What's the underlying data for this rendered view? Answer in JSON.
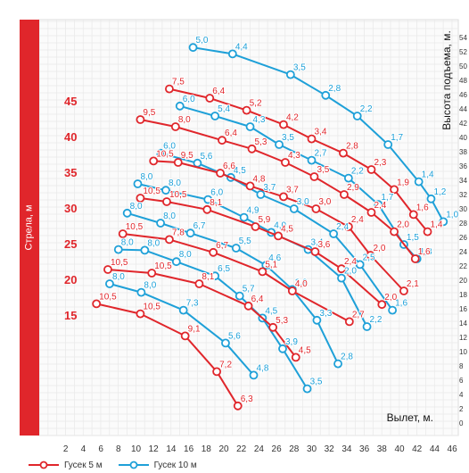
{
  "chart_data": {
    "type": "line",
    "xlabel": "Вылет, м.",
    "ylabel": "Высота подъема, м.",
    "side_label": "Стрела, м",
    "xlim": [
      0,
      46
    ],
    "ylim": [
      0,
      56
    ],
    "x_ticks": [
      "2",
      "4",
      "6",
      "8",
      "10",
      "12",
      "14",
      "16",
      "18",
      "20",
      "22",
      "24",
      "26",
      "28",
      "30",
      "32",
      "34",
      "36",
      "38",
      "40",
      "42",
      "44",
      "46"
    ],
    "y_ticks": [
      "0",
      "2",
      "4",
      "6",
      "8",
      "10",
      "12",
      "14",
      "16",
      "18",
      "20",
      "22",
      "24",
      "26",
      "28",
      "30",
      "32",
      "34",
      "36",
      "38",
      "40",
      "42",
      "44",
      "46",
      "48",
      "50",
      "52",
      "54"
    ],
    "boom_labels": [
      {
        "text": "45",
        "y": 45
      },
      {
        "text": "40",
        "y": 40
      },
      {
        "text": "35",
        "y": 35
      },
      {
        "text": "30",
        "y": 30
      },
      {
        "text": "25",
        "y": 25
      },
      {
        "text": "20",
        "y": 20
      },
      {
        "text": "15",
        "y": 15
      }
    ],
    "colors": {
      "jib5": "#e0262b",
      "jib10": "#1ea0d8",
      "boom_bar": "#e0262b",
      "grid": "#e8e8e8"
    },
    "legend": [
      {
        "name": "Гусек 5 м",
        "color": "#e0262b"
      },
      {
        "name": "Гусек 10 м",
        "color": "#1ea0d8"
      }
    ],
    "series": [
      {
        "name": "Гусек 5 м",
        "boom": "45",
        "color": "#e0262b",
        "points": [
          {
            "x": 13.8,
            "y": 46.8,
            "label": "7,5"
          },
          {
            "x": 18.4,
            "y": 45.5,
            "label": "6,4"
          },
          {
            "x": 22.6,
            "y": 43.8,
            "label": "5,2"
          },
          {
            "x": 26.8,
            "y": 41.8,
            "label": "4,2"
          },
          {
            "x": 30.0,
            "y": 39.8,
            "label": "3,4"
          },
          {
            "x": 33.6,
            "y": 37.8,
            "label": "2,8"
          },
          {
            "x": 36.8,
            "y": 35.5,
            "label": "2,3"
          },
          {
            "x": 39.4,
            "y": 32.7,
            "label": "1,9"
          },
          {
            "x": 41.6,
            "y": 29.2,
            "label": "1,6"
          },
          {
            "x": 43.2,
            "y": 26.8,
            "label": "1,4"
          }
        ]
      },
      {
        "name": "Гусек 5 м",
        "boom": "40",
        "color": "#e0262b",
        "points": [
          {
            "x": 10.5,
            "y": 42.5,
            "label": "9,5"
          },
          {
            "x": 14.5,
            "y": 41.5,
            "label": "8,0"
          },
          {
            "x": 19.8,
            "y": 39.6,
            "label": "6,4"
          },
          {
            "x": 23.2,
            "y": 38.4,
            "label": "5,3"
          },
          {
            "x": 27.0,
            "y": 36.5,
            "label": "4,3"
          },
          {
            "x": 30.3,
            "y": 34.5,
            "label": "3,5"
          },
          {
            "x": 33.7,
            "y": 32.0,
            "label": "2,9"
          },
          {
            "x": 36.8,
            "y": 29.5,
            "label": "2,4"
          },
          {
            "x": 39.4,
            "y": 26.8,
            "label": "2,0"
          },
          {
            "x": 41.8,
            "y": 23.0,
            "label": "1,6"
          }
        ]
      },
      {
        "name": "Гусек 5 м",
        "boom": "35",
        "color": "#e0262b",
        "points": [
          {
            "x": 12.0,
            "y": 36.7,
            "label": "10,5"
          },
          {
            "x": 14.8,
            "y": 36.5,
            "label": "9,5"
          },
          {
            "x": 19.6,
            "y": 35.0,
            "label": "6,6"
          },
          {
            "x": 23.0,
            "y": 33.2,
            "label": "4,8"
          },
          {
            "x": 26.8,
            "y": 31.7,
            "label": "3,7"
          },
          {
            "x": 30.5,
            "y": 30.0,
            "label": "3,0"
          },
          {
            "x": 34.2,
            "y": 27.5,
            "label": "2,4"
          },
          {
            "x": 36.7,
            "y": 23.5,
            "label": "2,0"
          },
          {
            "x": 40.5,
            "y": 18.5,
            "label": "2,1"
          }
        ]
      },
      {
        "name": "Гусек 5 м",
        "boom": "30",
        "color": "#e0262b",
        "points": [
          {
            "x": 10.5,
            "y": 31.5,
            "label": "10,5"
          },
          {
            "x": 13.5,
            "y": 31.0,
            "label": "10,5"
          },
          {
            "x": 18.1,
            "y": 29.9,
            "label": "8,1"
          },
          {
            "x": 23.6,
            "y": 27.5,
            "label": "5,9"
          },
          {
            "x": 26.2,
            "y": 26.2,
            "label": "4,5"
          },
          {
            "x": 30.4,
            "y": 24.0,
            "label": "3,6"
          },
          {
            "x": 33.4,
            "y": 21.6,
            "label": "2,4"
          },
          {
            "x": 38.0,
            "y": 16.6,
            "label": "2,0"
          }
        ]
      },
      {
        "name": "Гусек 5 м",
        "boom": "25",
        "color": "#e0262b",
        "points": [
          {
            "x": 8.5,
            "y": 26.5,
            "label": "10,5"
          },
          {
            "x": 13.8,
            "y": 25.7,
            "label": "7,8"
          },
          {
            "x": 18.8,
            "y": 23.9,
            "label": "6,7"
          },
          {
            "x": 24.4,
            "y": 21.2,
            "label": "5,1"
          },
          {
            "x": 27.8,
            "y": 18.5,
            "label": "4,0"
          },
          {
            "x": 34.3,
            "y": 14.2,
            "label": "2,7"
          }
        ]
      },
      {
        "name": "Гусек 5 м",
        "boom": "20",
        "color": "#e0262b",
        "points": [
          {
            "x": 6.8,
            "y": 21.5,
            "label": "10,5"
          },
          {
            "x": 11.8,
            "y": 21.0,
            "label": "10,5"
          },
          {
            "x": 17.2,
            "y": 19.5,
            "label": "8,1"
          },
          {
            "x": 22.8,
            "y": 16.4,
            "label": "6,4"
          },
          {
            "x": 25.6,
            "y": 13.4,
            "label": "5,3"
          },
          {
            "x": 28.2,
            "y": 9.2,
            "label": "4,5"
          }
        ]
      },
      {
        "name": "Гусек 5 м",
        "boom": "15",
        "color": "#e0262b",
        "points": [
          {
            "x": 5.5,
            "y": 16.7,
            "label": "10,5"
          },
          {
            "x": 10.5,
            "y": 15.3,
            "label": "10,5"
          },
          {
            "x": 15.6,
            "y": 12.2,
            "label": "9,1"
          },
          {
            "x": 19.2,
            "y": 7.2,
            "label": "7,2"
          },
          {
            "x": 21.6,
            "y": 2.4,
            "label": "6,3"
          }
        ]
      },
      {
        "name": "Гусек 10 м",
        "boom": "45",
        "color": "#1ea0d8",
        "points": [
          {
            "x": 16.5,
            "y": 52.6,
            "label": "5,0"
          },
          {
            "x": 21.0,
            "y": 51.7,
            "label": "4,4"
          },
          {
            "x": 27.6,
            "y": 48.8,
            "label": "3,5"
          },
          {
            "x": 31.6,
            "y": 45.9,
            "label": "2,8"
          },
          {
            "x": 35.2,
            "y": 43.0,
            "label": "2,2"
          },
          {
            "x": 38.7,
            "y": 39.0,
            "label": "1,7"
          },
          {
            "x": 42.2,
            "y": 33.8,
            "label": "1,4"
          },
          {
            "x": 43.6,
            "y": 31.4,
            "label": "1,2"
          },
          {
            "x": 45.0,
            "y": 28.2,
            "label": "1,0"
          }
        ]
      },
      {
        "name": "Гусек 10 м",
        "boom": "40",
        "color": "#1ea0d8",
        "points": [
          {
            "x": 15.0,
            "y": 44.4,
            "label": "6,0"
          },
          {
            "x": 19.0,
            "y": 43.0,
            "label": "5,4"
          },
          {
            "x": 23.0,
            "y": 41.5,
            "label": "4,3"
          },
          {
            "x": 26.3,
            "y": 39.0,
            "label": "3,5"
          },
          {
            "x": 30.0,
            "y": 36.8,
            "label": "2,7"
          },
          {
            "x": 34.2,
            "y": 34.3,
            "label": "2,2"
          },
          {
            "x": 37.6,
            "y": 30.6,
            "label": "1,7"
          },
          {
            "x": 40.5,
            "y": 25.0,
            "label": "1,5"
          },
          {
            "x": 42.0,
            "y": 23.0,
            "label": "1,3"
          }
        ]
      },
      {
        "name": "Гусек 10 м",
        "boom": "35",
        "color": "#1ea0d8",
        "points": [
          {
            "x": 12.8,
            "y": 37.8,
            "label": "6,0"
          },
          {
            "x": 17.0,
            "y": 36.4,
            "label": "5,6"
          },
          {
            "x": 20.8,
            "y": 34.4,
            "label": "4,5"
          },
          {
            "x": 24.2,
            "y": 32.0,
            "label": "3,7"
          },
          {
            "x": 28.0,
            "y": 30.0,
            "label": "3,0"
          },
          {
            "x": 32.5,
            "y": 26.5,
            "label": "2,4"
          },
          {
            "x": 35.5,
            "y": 22.2,
            "label": "2,5"
          },
          {
            "x": 39.2,
            "y": 15.8,
            "label": "1,6"
          }
        ]
      },
      {
        "name": "Гусек 10 м",
        "boom": "30",
        "color": "#1ea0d8",
        "points": [
          {
            "x": 10.2,
            "y": 33.5,
            "label": "8,0"
          },
          {
            "x": 13.4,
            "y": 32.6,
            "label": "8,0"
          },
          {
            "x": 18.2,
            "y": 31.3,
            "label": "6,0"
          },
          {
            "x": 22.3,
            "y": 28.8,
            "label": "4,9"
          },
          {
            "x": 25.4,
            "y": 26.7,
            "label": "4,0"
          },
          {
            "x": 29.6,
            "y": 24.3,
            "label": "3,4"
          },
          {
            "x": 33.4,
            "y": 20.3,
            "label": "2,0"
          },
          {
            "x": 36.3,
            "y": 13.5,
            "label": "2,2"
          }
        ]
      },
      {
        "name": "Гусек 10 м",
        "boom": "25",
        "color": "#1ea0d8",
        "points": [
          {
            "x": 9.0,
            "y": 29.4,
            "label": "8,0"
          },
          {
            "x": 12.8,
            "y": 28.0,
            "label": "8,0"
          },
          {
            "x": 16.2,
            "y": 26.6,
            "label": "6,7"
          },
          {
            "x": 21.4,
            "y": 24.5,
            "label": "5,5"
          },
          {
            "x": 24.8,
            "y": 22.1,
            "label": "4,6"
          },
          {
            "x": 27.8,
            "y": 18.7,
            "label": "3,9"
          },
          {
            "x": 30.6,
            "y": 14.4,
            "label": "3,3"
          },
          {
            "x": 33.0,
            "y": 8.3,
            "label": "2,8"
          }
        ]
      },
      {
        "name": "Гусек 10 м",
        "boom": "20",
        "color": "#1ea0d8",
        "points": [
          {
            "x": 8.0,
            "y": 24.3,
            "label": "8,0"
          },
          {
            "x": 11.0,
            "y": 24.2,
            "label": "8,0"
          },
          {
            "x": 14.6,
            "y": 22.6,
            "label": "8,0"
          },
          {
            "x": 19.0,
            "y": 20.6,
            "label": "6,5"
          },
          {
            "x": 21.8,
            "y": 17.8,
            "label": "5,7"
          },
          {
            "x": 24.4,
            "y": 14.7,
            "label": "4,5"
          },
          {
            "x": 26.7,
            "y": 10.4,
            "label": "3,9"
          },
          {
            "x": 29.5,
            "y": 4.8,
            "label": "3,5"
          }
        ]
      },
      {
        "name": "Гусек 10 м",
        "boom": "15",
        "color": "#1ea0d8",
        "points": [
          {
            "x": 7.0,
            "y": 19.5,
            "label": "8,0"
          },
          {
            "x": 10.6,
            "y": 18.3,
            "label": "8,0"
          },
          {
            "x": 15.4,
            "y": 15.8,
            "label": "7,3"
          },
          {
            "x": 20.2,
            "y": 11.2,
            "label": "5,6"
          },
          {
            "x": 23.4,
            "y": 6.7,
            "label": "4,8"
          }
        ]
      }
    ]
  }
}
